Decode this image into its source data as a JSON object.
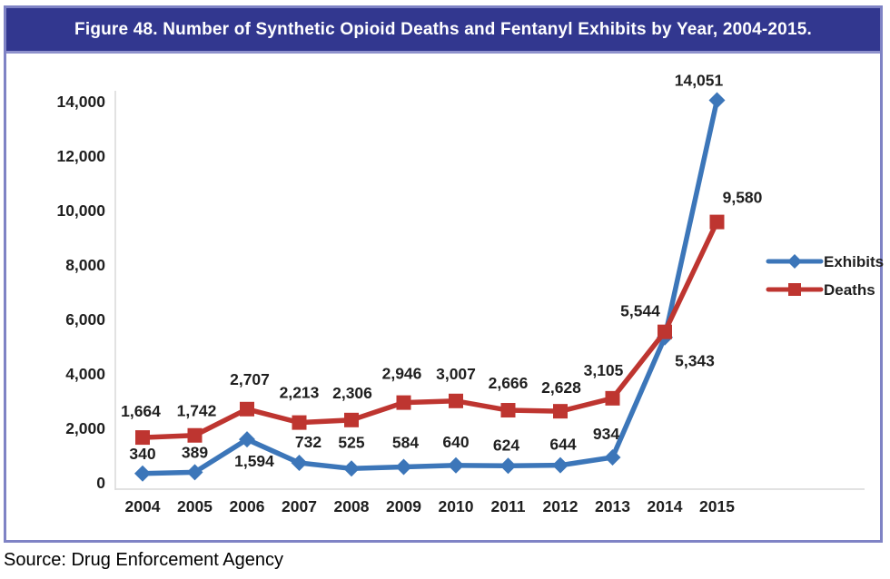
{
  "figure": {
    "title": "Figure 48. Number of Synthetic Opioid Deaths and Fentanyl Exhibits by Year, 2004-2015.",
    "source": "Source: Drug Enforcement Agency"
  },
  "colors": {
    "title_bar_bg": "#32378F",
    "frame_border": "#7F83C5",
    "axis_line": "#D9D9D9",
    "label_text": "#1F1F1F"
  },
  "chart_data": {
    "type": "line",
    "title": "Figure 48. Number of Synthetic Opioid Deaths and Fentanyl Exhibits by Year, 2004-2015.",
    "xlabel": "",
    "ylabel": "",
    "categories": [
      "2004",
      "2005",
      "2006",
      "2007",
      "2008",
      "2009",
      "2010",
      "2011",
      "2012",
      "2013",
      "2014",
      "2015"
    ],
    "ylim": [
      0,
      14000
    ],
    "ytick_step": 2000,
    "grid": false,
    "legend_position": "right",
    "series": [
      {
        "name": "Exhibits",
        "color": "#3C76B9",
        "marker": "diamond",
        "values": [
          340,
          389,
          1594,
          732,
          525,
          584,
          640,
          624,
          644,
          934,
          5343,
          14051
        ],
        "label_offsets": [
          [
            0,
            -16
          ],
          [
            0,
            -16
          ],
          [
            8,
            30
          ],
          [
            10,
            -17
          ],
          [
            0,
            -23
          ],
          [
            2,
            -21
          ],
          [
            0,
            -20
          ],
          [
            -2,
            -17
          ],
          [
            3,
            -17
          ],
          [
            -7,
            -20
          ],
          [
            33,
            32
          ],
          [
            -20,
            -16
          ]
        ]
      },
      {
        "name": "Deaths",
        "color": "#BE3530",
        "marker": "square",
        "values": [
          1664,
          1742,
          2707,
          2213,
          2306,
          2946,
          3007,
          2666,
          2628,
          3105,
          5544,
          9580
        ],
        "label_offsets": [
          [
            -2,
            -23
          ],
          [
            2,
            -21
          ],
          [
            3,
            -27
          ],
          [
            0,
            -27
          ],
          [
            1,
            -24
          ],
          [
            -2,
            -26
          ],
          [
            0,
            -24
          ],
          [
            0,
            -24
          ],
          [
            1,
            -20
          ],
          [
            -10,
            -25
          ],
          [
            -27,
            -17
          ],
          [
            28,
            -21
          ]
        ]
      }
    ]
  }
}
